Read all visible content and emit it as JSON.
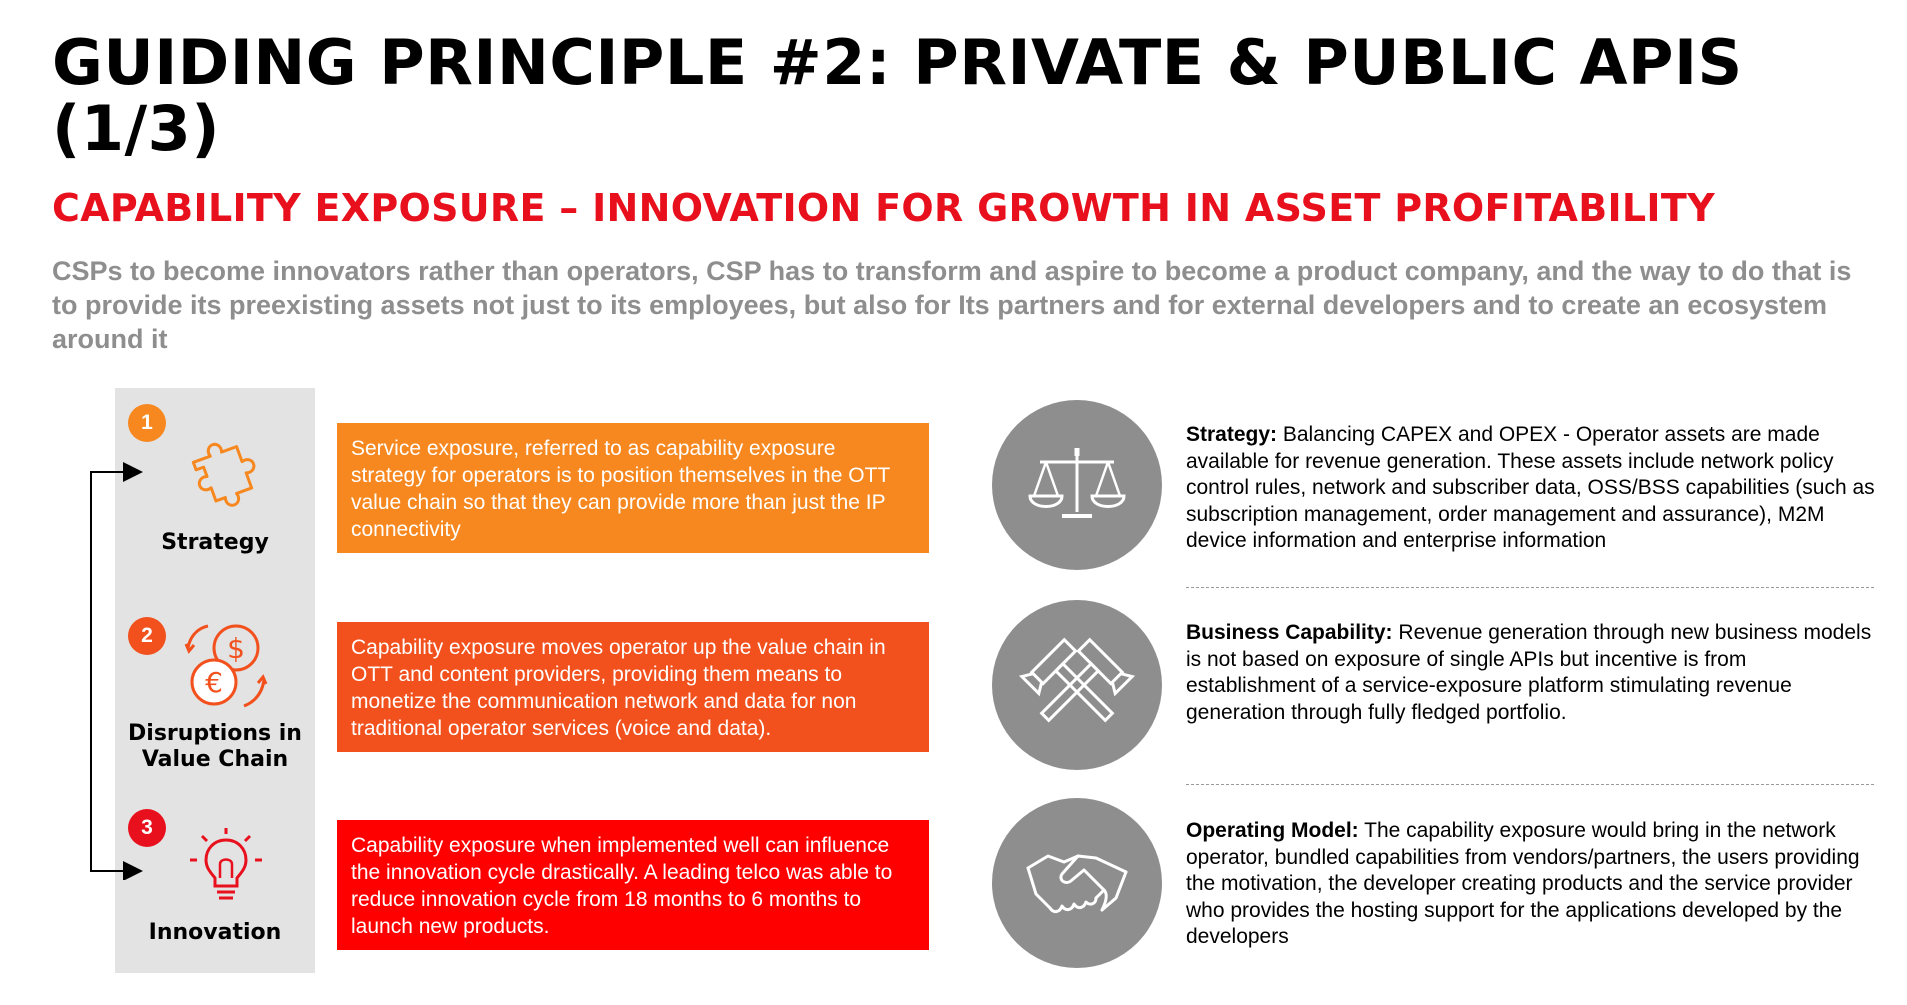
{
  "title": "GUIDING PRINCIPLE #2: PRIVATE & PUBLIC APIS (1/3)",
  "subtitle": "CAPABILITY EXPOSURE – INNOVATION FOR GROWTH IN ASSET PROFITABILITY",
  "intro": "CSPs to become innovators rather than operators, CSP has to transform and aspire to become a product company, and the way to do that is to provide its preexisting assets not just to its employees, but also for Its partners and for external developers and to create an ecosystem around it",
  "colors": {
    "orange": "#f6881f",
    "orange_red": "#f2501c",
    "red": "#ff0000",
    "title_red": "#e8101c",
    "grey": "#8e8e8e"
  },
  "steps": [
    {
      "number": "1",
      "label": "Strategy",
      "icon": "puzzle-icon",
      "description": "Service exposure, referred to as capability exposure strategy for operators is to position themselves in the OTT value chain so that they can provide more than just the IP connectivity"
    },
    {
      "number": "2",
      "label": "Disruptions in Value Chain",
      "icon": "currency-exchange-icon",
      "description": "Capability exposure moves operator up the value chain in OTT and content providers, providing them means to monetize the communication network and data for non traditional operator services (voice and data)."
    },
    {
      "number": "3",
      "label": "Innovation",
      "icon": "lightbulb-icon",
      "description": "Capability exposure when implemented well can influence the innovation cycle drastically. A leading telco was able to reduce innovation cycle from 18 months to 6 months to launch new products."
    }
  ],
  "details": [
    {
      "label": "Strategy:",
      "icon": "balance-scale-icon",
      "text": " Balancing CAPEX and OPEX -  Operator assets are made available for revenue generation. These assets include network policy control rules, network and subscriber data, OSS/BSS capabilities (such as subscription management, order management and assurance), M2M device information and enterprise information"
    },
    {
      "label": "Business Capability:",
      "icon": "crossed-hammers-icon",
      "text": " Revenue generation through new business models is not based on exposure of single APIs but incentive is from establishment of a service-exposure platform stimulating revenue generation through fully fledged portfolio."
    },
    {
      "label": "Operating Model:",
      "icon": "handshake-icon",
      "text": " The capability exposure would bring in the network operator, bundled capabilities from vendors/partners, the users providing the motivation, the developer creating products and the service provider who provides the hosting support for the applications developed by the developers"
    }
  ]
}
